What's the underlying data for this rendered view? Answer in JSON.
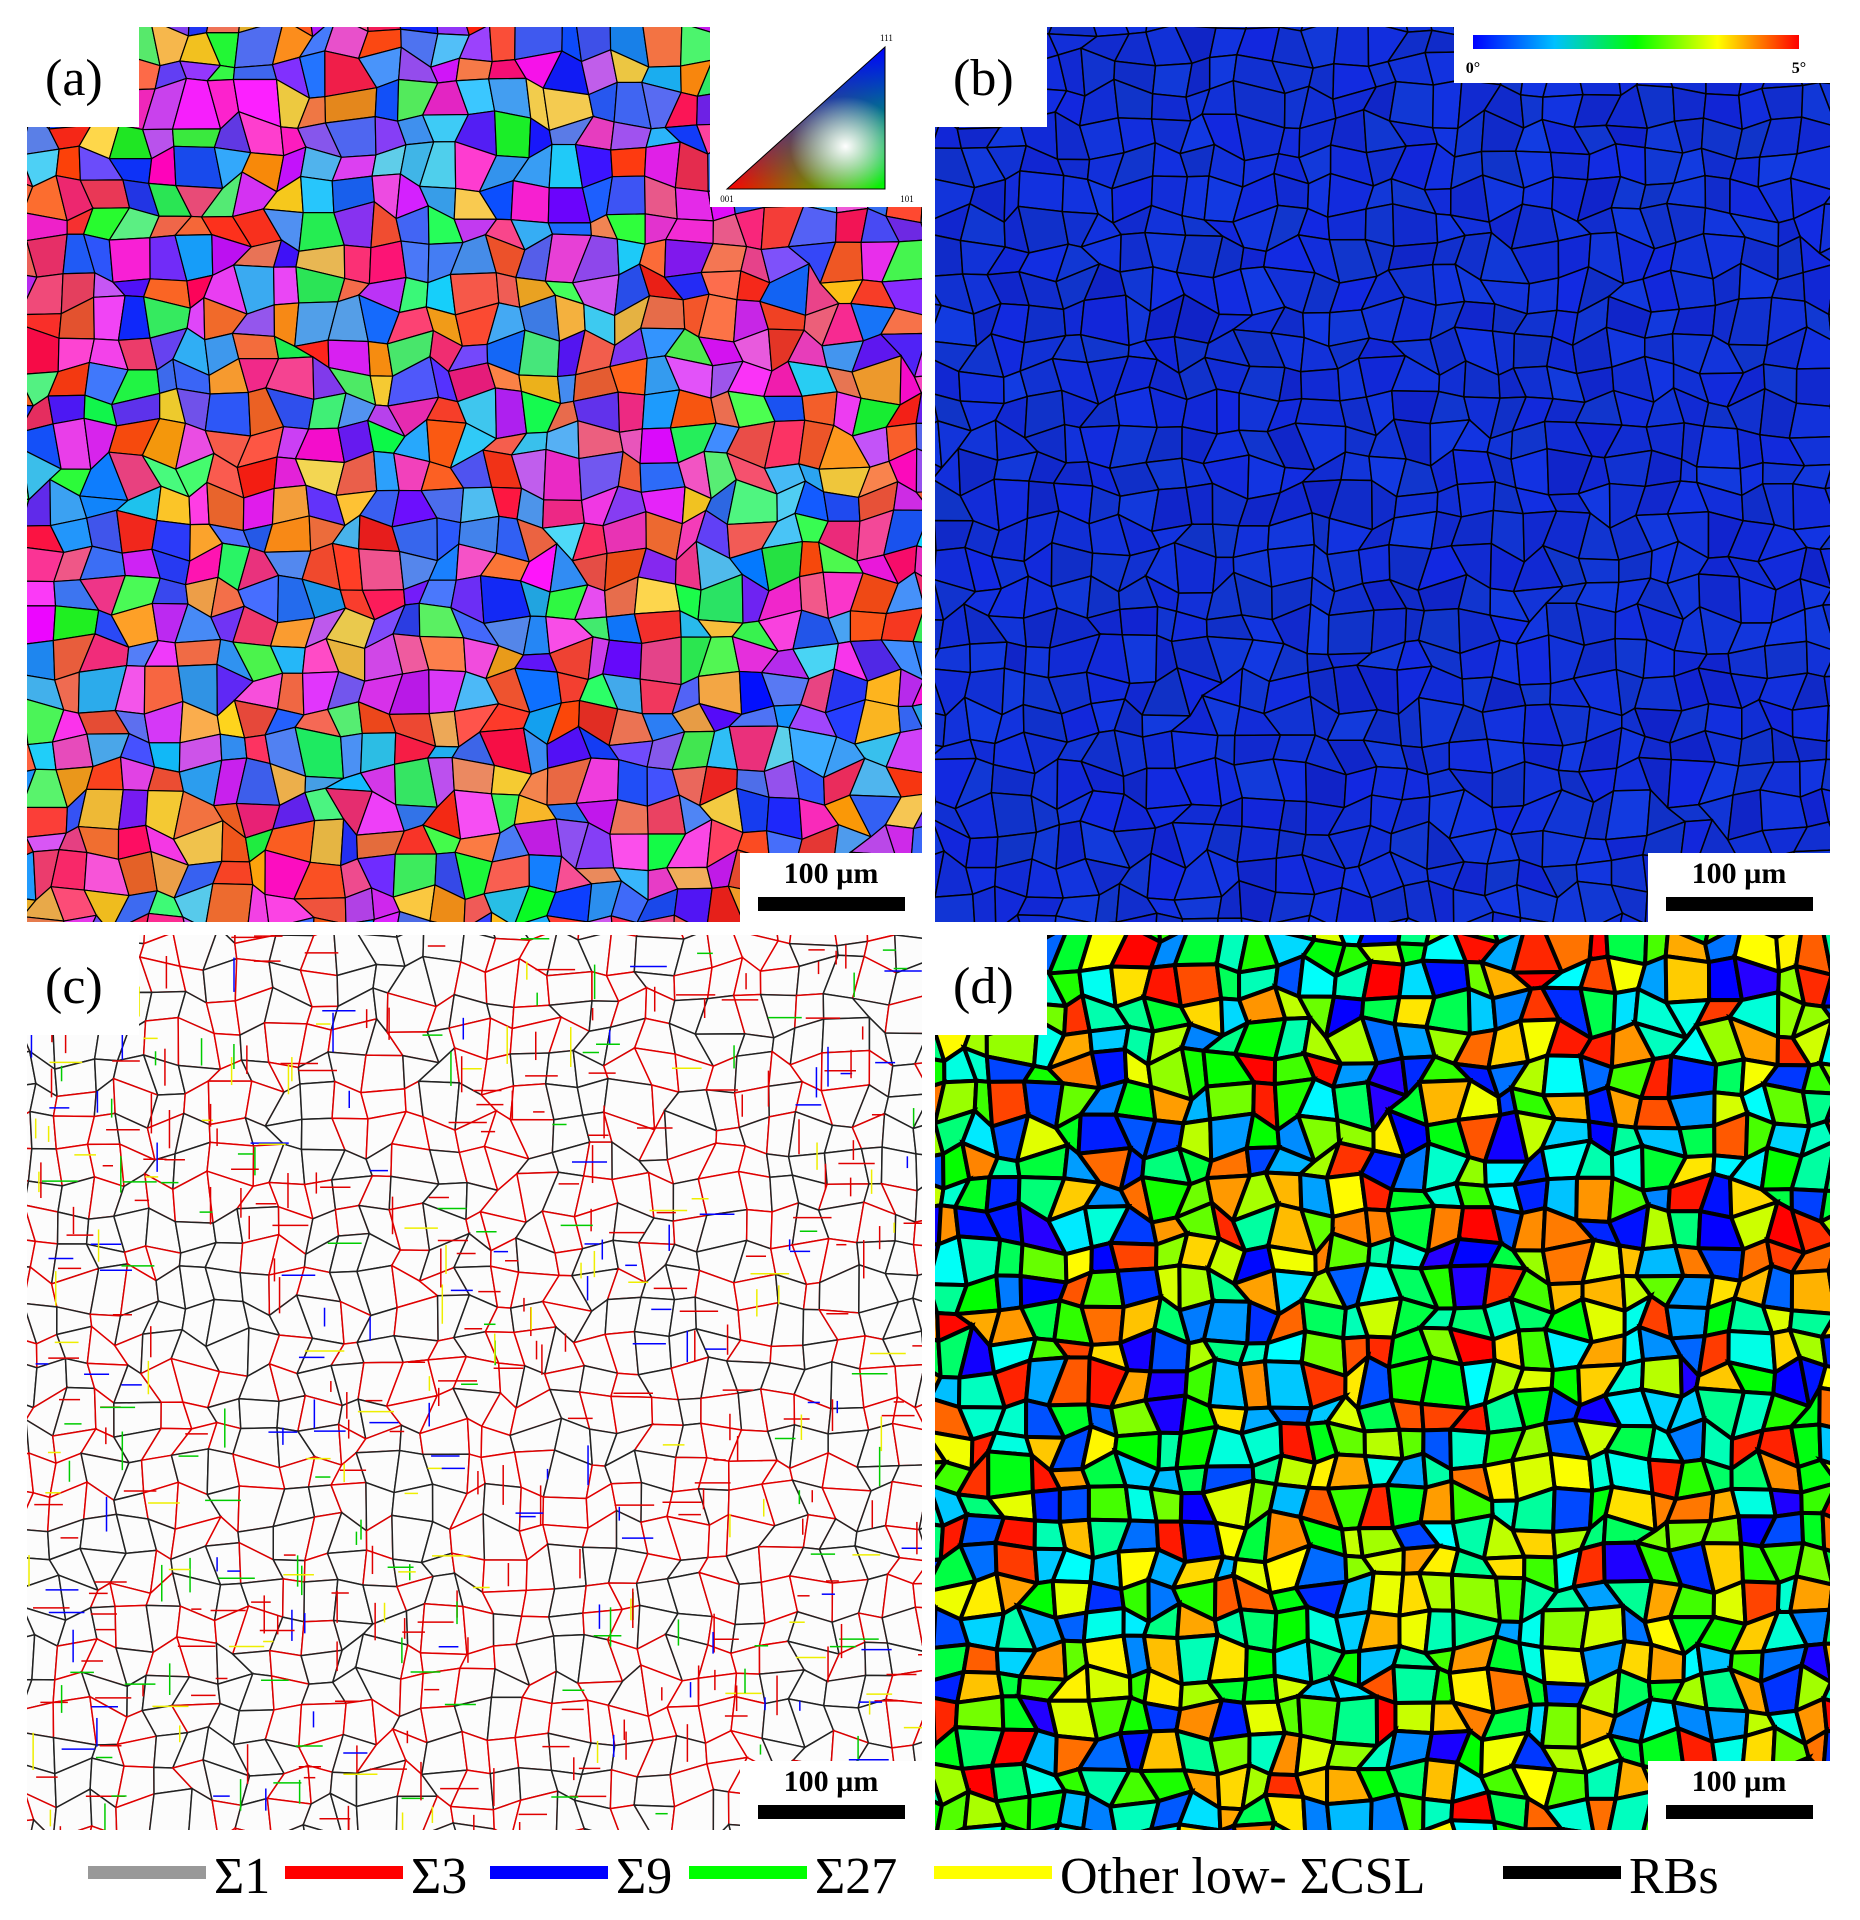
{
  "panels": [
    {
      "label": "(a)",
      "scale_bar": "100 µm",
      "style": "ipf"
    },
    {
      "label": "(b)",
      "scale_bar": "100 µm",
      "style": "kam"
    },
    {
      "label": "(c)",
      "scale_bar": "100 µm",
      "style": "boundaries"
    },
    {
      "label": "(d)",
      "scale_bar": "100 µm",
      "style": "grains"
    }
  ],
  "ipf_key": {
    "top": "111",
    "left": "001",
    "right": "101"
  },
  "colorbar": {
    "min": "0°",
    "max": "5°",
    "colors": [
      "#0000ff",
      "#00c0ff",
      "#00ff00",
      "#ffff00",
      "#ff0000"
    ]
  },
  "legend": {
    "items": [
      {
        "label": "Σ1",
        "color": "#999999"
      },
      {
        "label": "Σ3",
        "color": "#ff0000"
      },
      {
        "label": "Σ9",
        "color": "#0000ff"
      },
      {
        "label": "Σ27",
        "color": "#00ff00"
      },
      {
        "label": "Other low- ΣCSL",
        "color": "#ffff00"
      },
      {
        "label": "RBs",
        "color": "#000000"
      }
    ]
  }
}
